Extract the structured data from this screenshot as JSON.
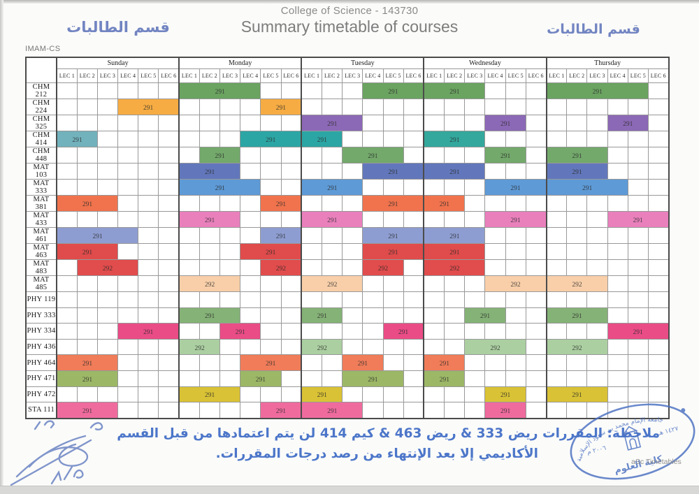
{
  "header": {
    "dept_label_left": "قسم الطالبات",
    "dept_label_right": "قسم الطالبات",
    "title_line1": "College of Science - 143730",
    "title_line2": "Summary timetable of courses",
    "imam_label": "IMAM-CS"
  },
  "timetable": {
    "days": [
      "Sunday",
      "Monday",
      "Tuesday",
      "Wednesday",
      "Thursday"
    ],
    "periods": [
      "LEC 1",
      "LEC 2",
      "LEC 3",
      "LEC 4",
      "LEC 5",
      "LEC 6"
    ],
    "rows": [
      {
        "course": "CHM 212",
        "blocks": [
          {
            "day": 1,
            "start": 1,
            "span": 4,
            "label": "291",
            "color": "#6BA361"
          },
          {
            "day": 2,
            "start": 4,
            "span": 3,
            "label": "291",
            "color": "#6BA361"
          },
          {
            "day": 3,
            "start": 1,
            "span": 3,
            "label": "291",
            "color": "#6BA361"
          },
          {
            "day": 4,
            "start": 1,
            "span": 5,
            "label": "291",
            "color": "#6BA361"
          }
        ]
      },
      {
        "course": "CHM 224",
        "blocks": [
          {
            "day": 0,
            "start": 4,
            "span": 3,
            "label": "291",
            "color": "#F6AC43"
          },
          {
            "day": 1,
            "start": 5,
            "span": 2,
            "label": "291",
            "color": "#F6AC43"
          }
        ]
      },
      {
        "course": "CHM 325",
        "blocks": [
          {
            "day": 2,
            "start": 1,
            "span": 3,
            "label": "291",
            "color": "#8C69B6"
          },
          {
            "day": 3,
            "start": 4,
            "span": 2,
            "label": "291",
            "color": "#8C69B6"
          },
          {
            "day": 4,
            "start": 4,
            "span": 2,
            "label": "291",
            "color": "#8C69B6"
          }
        ]
      },
      {
        "course": "CHM 414",
        "blocks": [
          {
            "day": 0,
            "start": 1,
            "span": 2,
            "label": "291",
            "color": "#72B2BC"
          },
          {
            "day": 1,
            "start": 4,
            "span": 3,
            "label": "291",
            "color": "#2CA6A4"
          },
          {
            "day": 2,
            "start": 1,
            "span": 2,
            "label": "291",
            "color": "#2CA6A4"
          },
          {
            "day": 3,
            "start": 1,
            "span": 3,
            "label": "291",
            "color": "#34A89D"
          }
        ]
      },
      {
        "course": "CHM 448",
        "blocks": [
          {
            "day": 1,
            "start": 2,
            "span": 2,
            "label": "291",
            "color": "#73A96B"
          },
          {
            "day": 2,
            "start": 3,
            "span": 3,
            "label": "291",
            "color": "#73A96B"
          },
          {
            "day": 3,
            "start": 4,
            "span": 2,
            "label": "291",
            "color": "#73A96B"
          },
          {
            "day": 4,
            "start": 1,
            "span": 3,
            "label": "291",
            "color": "#73A96B"
          }
        ]
      },
      {
        "course": "MAT 103",
        "blocks": [
          {
            "day": 1,
            "start": 1,
            "span": 3,
            "label": "291",
            "color": "#6277BB"
          },
          {
            "day": 2,
            "start": 4,
            "span": 3,
            "label": "291",
            "color": "#6277BB"
          },
          {
            "day": 3,
            "start": 1,
            "span": 3,
            "label": "291",
            "color": "#6277BB"
          },
          {
            "day": 4,
            "start": 1,
            "span": 3,
            "label": "291",
            "color": "#6277BB"
          }
        ]
      },
      {
        "course": "MAT 333",
        "blocks": [
          {
            "day": 1,
            "start": 1,
            "span": 4,
            "label": "291",
            "color": "#5E9AD6"
          },
          {
            "day": 2,
            "start": 1,
            "span": 3,
            "label": "291",
            "color": "#5E9AD6"
          },
          {
            "day": 3,
            "start": 4,
            "span": 3,
            "label": "291",
            "color": "#5E9AD6"
          },
          {
            "day": 4,
            "start": 1,
            "span": 4,
            "label": "291",
            "color": "#5E9AD6"
          }
        ]
      },
      {
        "course": "MAT 381",
        "blocks": [
          {
            "day": 0,
            "start": 1,
            "span": 3,
            "label": "291",
            "color": "#F0734D"
          },
          {
            "day": 1,
            "start": 5,
            "span": 2,
            "label": "291",
            "color": "#F0734D"
          },
          {
            "day": 2,
            "start": 4,
            "span": 3,
            "label": "291",
            "color": "#F0734D"
          },
          {
            "day": 3,
            "start": 1,
            "span": 2,
            "label": "291",
            "color": "#F0734D"
          }
        ]
      },
      {
        "course": "MAT 433",
        "blocks": [
          {
            "day": 1,
            "start": 1,
            "span": 3,
            "label": "291",
            "color": "#E980BC"
          },
          {
            "day": 2,
            "start": 1,
            "span": 3,
            "label": "291",
            "color": "#E980BC"
          },
          {
            "day": 3,
            "start": 4,
            "span": 3,
            "label": "291",
            "color": "#E980BC"
          },
          {
            "day": 4,
            "start": 4,
            "span": 3,
            "label": "291",
            "color": "#E980BC"
          }
        ]
      },
      {
        "course": "MAT 461",
        "blocks": [
          {
            "day": 0,
            "start": 1,
            "span": 4,
            "label": "291",
            "color": "#8E9DD1"
          },
          {
            "day": 1,
            "start": 5,
            "span": 2,
            "label": "291",
            "color": "#8E9DD1"
          },
          {
            "day": 2,
            "start": 4,
            "span": 3,
            "label": "291",
            "color": "#8E9DD1"
          },
          {
            "day": 3,
            "start": 1,
            "span": 3,
            "label": "291",
            "color": "#8E9DD1"
          }
        ]
      },
      {
        "course": "MAT 463",
        "blocks": [
          {
            "day": 0,
            "start": 1,
            "span": 3,
            "label": "291",
            "color": "#E04B4B"
          },
          {
            "day": 1,
            "start": 4,
            "span": 3,
            "label": "291",
            "color": "#E04B4B"
          },
          {
            "day": 2,
            "start": 4,
            "span": 3,
            "label": "291",
            "color": "#E04B4B"
          },
          {
            "day": 3,
            "start": 1,
            "span": 3,
            "label": "291",
            "color": "#E04B4B"
          }
        ]
      },
      {
        "course": "MAT 483",
        "blocks": [
          {
            "day": 0,
            "start": 2,
            "span": 3,
            "label": "292",
            "color": "#E14C4C"
          },
          {
            "day": 1,
            "start": 5,
            "span": 2,
            "label": "292",
            "color": "#E14C4C"
          },
          {
            "day": 2,
            "start": 4,
            "span": 2,
            "label": "292",
            "color": "#E14C4C"
          },
          {
            "day": 3,
            "start": 1,
            "span": 3,
            "label": "292",
            "color": "#E14C4C"
          }
        ]
      },
      {
        "course": "MAT 485",
        "blocks": [
          {
            "day": 1,
            "start": 1,
            "span": 3,
            "label": "292",
            "color": "#F8CFA9"
          },
          {
            "day": 2,
            "start": 1,
            "span": 3,
            "label": "292",
            "color": "#F8CFA9"
          },
          {
            "day": 3,
            "start": 4,
            "span": 3,
            "label": "292",
            "color": "#F8CFA9"
          },
          {
            "day": 4,
            "start": 1,
            "span": 3,
            "label": "292",
            "color": "#F8CFA9"
          }
        ]
      },
      {
        "course": "PHY 119",
        "blocks": []
      },
      {
        "course": "PHY 333",
        "blocks": [
          {
            "day": 1,
            "start": 1,
            "span": 3,
            "label": "291",
            "color": "#85B277"
          },
          {
            "day": 2,
            "start": 1,
            "span": 2,
            "label": "291",
            "color": "#85B277"
          },
          {
            "day": 3,
            "start": 3,
            "span": 2,
            "label": "291",
            "color": "#85B277"
          },
          {
            "day": 4,
            "start": 1,
            "span": 3,
            "label": "291",
            "color": "#85B277"
          }
        ]
      },
      {
        "course": "PHY 334",
        "blocks": [
          {
            "day": 0,
            "start": 4,
            "span": 3,
            "label": "291",
            "color": "#EA4C86"
          },
          {
            "day": 1,
            "start": 3,
            "span": 2,
            "label": "291",
            "color": "#EA4C86"
          },
          {
            "day": 2,
            "start": 5,
            "span": 2,
            "label": "291",
            "color": "#EA4C86"
          },
          {
            "day": 4,
            "start": 4,
            "span": 3,
            "label": "291",
            "color": "#EA4C86"
          }
        ]
      },
      {
        "course": "PHY 436",
        "blocks": [
          {
            "day": 1,
            "start": 1,
            "span": 2,
            "label": "292",
            "color": "#ABCFA1"
          },
          {
            "day": 2,
            "start": 1,
            "span": 2,
            "label": "292",
            "color": "#ABCFA1"
          },
          {
            "day": 3,
            "start": 3,
            "span": 3,
            "label": "292",
            "color": "#ABCFA1"
          },
          {
            "day": 4,
            "start": 1,
            "span": 3,
            "label": "292",
            "color": "#ABCFA1"
          }
        ]
      },
      {
        "course": "PHY 464",
        "blocks": [
          {
            "day": 0,
            "start": 1,
            "span": 3,
            "label": "291",
            "color": "#F07C59"
          },
          {
            "day": 1,
            "start": 4,
            "span": 3,
            "label": "291",
            "color": "#F07C59"
          },
          {
            "day": 2,
            "start": 3,
            "span": 2,
            "label": "291",
            "color": "#F07C59"
          },
          {
            "day": 3,
            "start": 1,
            "span": 2,
            "label": "291",
            "color": "#F07C59"
          }
        ]
      },
      {
        "course": "PHY 471",
        "blocks": [
          {
            "day": 0,
            "start": 1,
            "span": 3,
            "label": "291",
            "color": "#9CB766"
          },
          {
            "day": 1,
            "start": 4,
            "span": 2,
            "label": "291",
            "color": "#9CB766"
          },
          {
            "day": 2,
            "start": 3,
            "span": 3,
            "label": "291",
            "color": "#9CB766"
          },
          {
            "day": 3,
            "start": 1,
            "span": 2,
            "label": "291",
            "color": "#9CB766"
          }
        ]
      },
      {
        "course": "PHY 472",
        "blocks": [
          {
            "day": 1,
            "start": 1,
            "span": 3,
            "label": "291",
            "color": "#D9C235"
          },
          {
            "day": 2,
            "start": 1,
            "span": 2,
            "label": "291",
            "color": "#D9C235"
          },
          {
            "day": 3,
            "start": 4,
            "span": 2,
            "label": "291",
            "color": "#D9C235"
          },
          {
            "day": 4,
            "start": 1,
            "span": 3,
            "label": "291",
            "color": "#D9C235"
          }
        ]
      },
      {
        "course": "STA 111",
        "blocks": [
          {
            "day": 0,
            "start": 1,
            "span": 3,
            "label": "291",
            "color": "#EF6B9E"
          },
          {
            "day": 1,
            "start": 5,
            "span": 2,
            "label": "291",
            "color": "#EF6B9E"
          },
          {
            "day": 2,
            "start": 1,
            "span": 3,
            "label": "291",
            "color": "#EF6B9E"
          },
          {
            "day": 3,
            "start": 4,
            "span": 2,
            "label": "291",
            "color": "#EF6B9E"
          }
        ]
      }
    ]
  },
  "note": {
    "line1": "ملاحظة: المقررات ريض 333 & ريض 463 & كيم 414 لن يتم اعتمادها من قبل القسم",
    "line2": "الأكاديمي إلا بعد الإنتهاء من رصد درجات المقررات."
  },
  "stamp": {
    "ring_text": "جامعة الإمام محمد بن سعود الإسلامية",
    "year_greg": "٢٠٠٦ م",
    "year_hijri": "١٤٢٧ هـ",
    "college": "كلية العلوم",
    "color": "#4a70c2"
  },
  "footer": {
    "brand": "aSc Timetables"
  },
  "colors": {
    "note_blue": "#4c76c9",
    "dept_blue": "#7285c2",
    "title_gray": "#8a8a8a"
  }
}
